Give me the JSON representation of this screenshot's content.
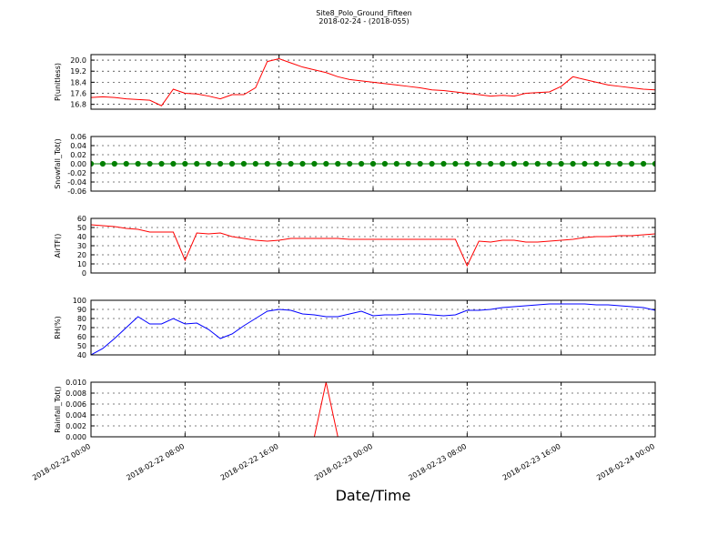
{
  "title": "Site8_Polo_Ground_Fifteen",
  "subtitle": "2018-02-24 - (2018-055)",
  "xlabel": "Date/Time",
  "x": [
    0,
    1,
    2,
    3,
    4,
    5,
    6,
    7,
    8,
    9,
    10,
    11,
    12,
    13,
    14,
    15,
    16,
    17,
    18,
    19,
    20,
    21,
    22,
    23,
    24,
    25,
    26,
    27,
    28,
    29,
    30,
    31,
    32,
    33,
    34,
    35,
    36,
    37,
    38,
    39,
    40,
    41,
    42,
    43,
    44,
    45,
    46,
    47,
    48
  ],
  "xlim": [
    0,
    48
  ],
  "xticks": [
    {
      "value": 0,
      "label": "2018-02-22 00:00"
    },
    {
      "value": 8,
      "label": "2018-02-22 08:00"
    },
    {
      "value": 16,
      "label": "2018-02-22 16:00"
    },
    {
      "value": 24,
      "label": "2018-02-23 00:00"
    },
    {
      "value": 32,
      "label": "2018-02-23 08:00"
    },
    {
      "value": 40,
      "label": "2018-02-23 16:00"
    },
    {
      "value": 48,
      "label": "2018-02-24 00:00"
    }
  ],
  "grid": true,
  "chart_data": [
    {
      "type": "line",
      "ylabel": "P(unitless)",
      "color": "#ff0000",
      "ylim": [
        16.45,
        20.4
      ],
      "yticks": [
        {
          "value": 16.8,
          "label": "16.8"
        },
        {
          "value": 17.6,
          "label": "17.6"
        },
        {
          "value": 18.4,
          "label": "18.4"
        },
        {
          "value": 19.2,
          "label": "19.2"
        },
        {
          "value": 20.0,
          "label": "20.0"
        }
      ],
      "values": [
        17.3,
        17.35,
        17.3,
        17.2,
        17.15,
        17.1,
        16.7,
        17.9,
        17.6,
        17.55,
        17.4,
        17.2,
        17.5,
        17.5,
        18.0,
        19.9,
        20.1,
        19.8,
        19.5,
        19.3,
        19.1,
        18.8,
        18.6,
        18.5,
        18.4,
        18.3,
        18.2,
        18.1,
        18.0,
        17.85,
        17.8,
        17.7,
        17.6,
        17.5,
        17.4,
        17.45,
        17.4,
        17.6,
        17.65,
        17.7,
        18.1,
        18.8,
        18.6,
        18.4,
        18.2,
        18.1,
        18.0,
        17.9,
        17.85
      ]
    },
    {
      "type": "line",
      "ylabel": "Snowfall_Tot()",
      "color": "#008000",
      "markers": true,
      "ylim": [
        -0.06,
        0.06
      ],
      "yticks": [
        {
          "value": -0.06,
          "label": "-0.06"
        },
        {
          "value": -0.04,
          "label": "-0.04"
        },
        {
          "value": -0.02,
          "label": "-0.02"
        },
        {
          "value": 0,
          "label": "0.00"
        },
        {
          "value": 0.02,
          "label": "0.02"
        },
        {
          "value": 0.04,
          "label": "0.04"
        },
        {
          "value": 0.06,
          "label": "0.06"
        }
      ],
      "values": [
        0,
        0,
        0,
        0,
        0,
        0,
        0,
        0,
        0,
        0,
        0,
        0,
        0,
        0,
        0,
        0,
        0,
        0,
        0,
        0,
        0,
        0,
        0,
        0,
        0,
        0,
        0,
        0,
        0,
        0,
        0,
        0,
        0,
        0,
        0,
        0,
        0,
        0,
        0,
        0,
        0,
        0,
        0,
        0,
        0,
        0,
        0,
        0,
        0
      ]
    },
    {
      "type": "line",
      "ylabel": "AirTF()",
      "color": "#ff0000",
      "ylim": [
        0,
        60
      ],
      "yticks": [
        0,
        10,
        20,
        30,
        40,
        50,
        60
      ],
      "values": [
        53,
        52,
        51,
        49,
        48,
        45,
        45,
        45,
        14,
        44,
        43,
        44,
        40,
        38,
        36,
        35,
        36,
        38,
        38,
        38,
        38,
        38,
        37,
        37,
        37,
        37,
        37,
        37,
        37,
        37,
        37,
        37,
        8,
        35,
        34,
        36,
        36,
        34,
        34,
        35,
        36,
        37,
        39,
        40,
        40,
        41,
        41,
        42,
        43
      ]
    },
    {
      "type": "line",
      "ylabel": "RH(%)",
      "color": "#0000ff",
      "ylim": [
        40,
        100
      ],
      "yticks": [
        40,
        50,
        60,
        70,
        80,
        90,
        100
      ],
      "values": [
        40,
        47,
        58,
        70,
        82,
        74,
        74,
        80,
        74,
        75,
        68,
        58,
        63,
        72,
        80,
        88,
        90,
        89,
        85,
        84,
        82,
        82,
        85,
        88,
        83,
        84,
        84,
        85,
        85,
        84,
        83,
        84,
        89,
        89,
        90,
        92,
        93,
        94,
        95,
        96,
        96,
        96,
        96,
        95,
        95,
        94,
        93,
        92,
        89
      ]
    },
    {
      "type": "line",
      "ylabel": "Rainfall_Tot()",
      "color": "#ff0000",
      "ylim": [
        0,
        0.01
      ],
      "yticks": [
        {
          "value": 0,
          "label": "0.000"
        },
        {
          "value": 0.002,
          "label": "0.002"
        },
        {
          "value": 0.004,
          "label": "0.004"
        },
        {
          "value": 0.006,
          "label": "0.006"
        },
        {
          "value": 0.008,
          "label": "0.008"
        },
        {
          "value": 0.01,
          "label": "0.010"
        }
      ],
      "values": [
        0,
        0,
        0,
        0,
        0,
        0,
        0,
        0,
        0,
        0,
        0,
        0,
        0,
        0,
        0,
        0,
        0,
        0,
        0,
        0,
        0.01,
        0,
        0,
        0,
        0,
        0,
        0,
        0,
        0,
        0,
        0,
        0,
        0,
        0,
        0,
        0,
        0,
        0,
        0,
        0,
        0,
        0,
        0,
        0,
        0,
        0,
        0,
        0,
        0
      ]
    }
  ]
}
